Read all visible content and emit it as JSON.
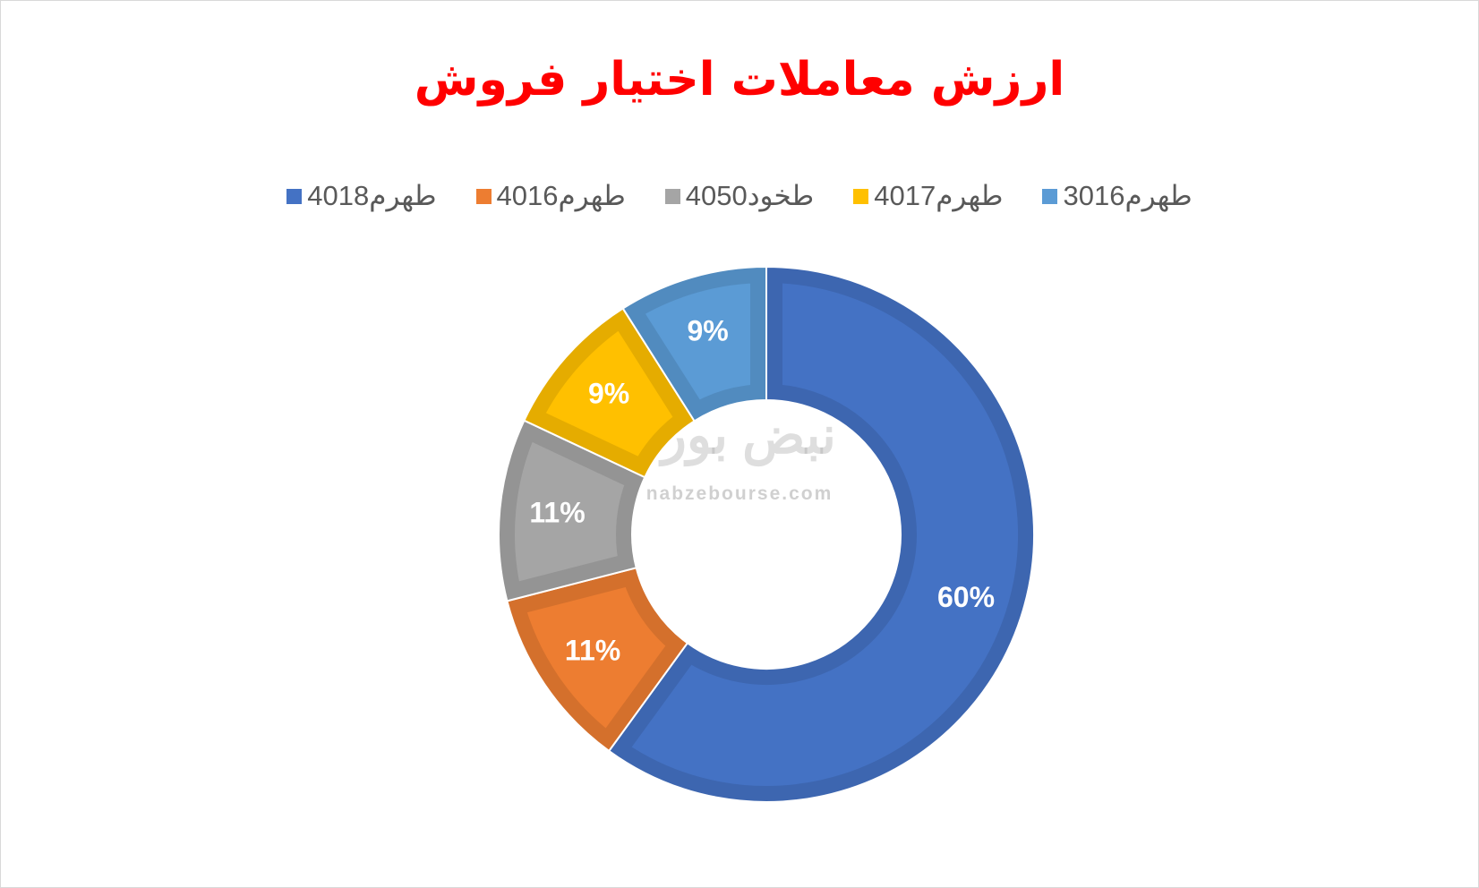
{
  "chart_data": {
    "type": "donut",
    "title": "ارزش معاملات اختیار فروش",
    "categories": [
      "طهرم4018",
      "طهرم4016",
      "طخود4050",
      "طهرم4017",
      "طهرم3016"
    ],
    "values": [
      60,
      11,
      11,
      9,
      9
    ],
    "value_labels": [
      "60%",
      "11%",
      "11%",
      "9%",
      "9%"
    ],
    "colors": [
      "#4472c4",
      "#ed7d31",
      "#a5a5a5",
      "#ffc000",
      "#5b9bd5"
    ],
    "watermark": {
      "logo": "نبض بورس",
      "url": "nabzebourse.com"
    }
  }
}
